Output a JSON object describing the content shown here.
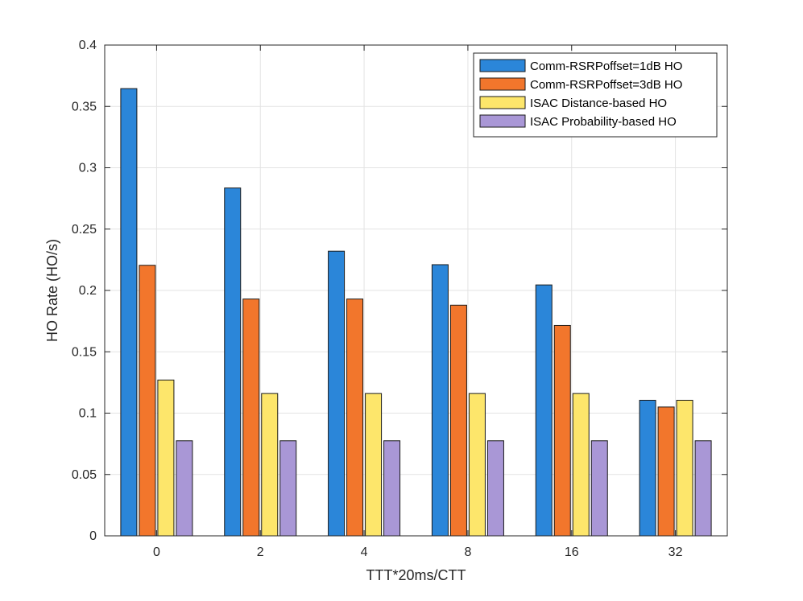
{
  "chart_data": {
    "type": "bar",
    "title": "",
    "xlabel": "TTT*20ms/CTT",
    "ylabel": "HO Rate (HO/s)",
    "categories": [
      "0",
      "2",
      "4",
      "8",
      "16",
      "32"
    ],
    "ylim": [
      0,
      0.4
    ],
    "yticks": [
      "0",
      "0.05",
      "0.1",
      "0.15",
      "0.2",
      "0.25",
      "0.3",
      "0.35",
      "0.4"
    ],
    "grid": true,
    "legend_position": "top-right",
    "series": [
      {
        "name": "Comm-RSRPoffset=1dB HO",
        "color": "#2b86d9",
        "values": [
          0.3645,
          0.2835,
          0.232,
          0.221,
          0.2045,
          0.1105
        ]
      },
      {
        "name": "Comm-RSRPoffset=3dB HO",
        "color": "#f2762c",
        "values": [
          0.2205,
          0.193,
          0.193,
          0.188,
          0.1715,
          0.105
        ]
      },
      {
        "name": "ISAC Distance-based HO",
        "color": "#fde66b",
        "values": [
          0.127,
          0.116,
          0.116,
          0.116,
          0.116,
          0.1105
        ]
      },
      {
        "name": "ISAC Probability-based HO",
        "color": "#a997d6",
        "values": [
          0.0775,
          0.0775,
          0.0775,
          0.0775,
          0.0775,
          0.0775
        ]
      }
    ]
  }
}
